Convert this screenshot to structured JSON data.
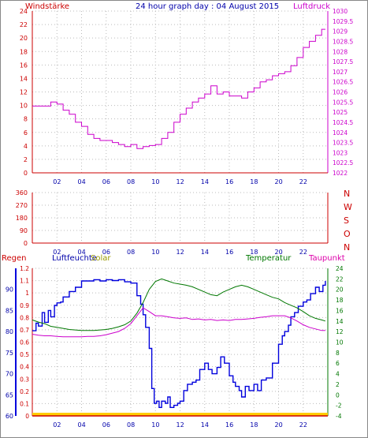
{
  "colors": {
    "red": "#cc0000",
    "magenta": "#cc00cc",
    "navy": "#0000aa",
    "blue": "#0000dd",
    "green": "#007700",
    "gold": "#999900",
    "pink": "#dd00aa",
    "grid": "#bbbbbb",
    "rain_bar": "#ffcc00"
  },
  "panel1": {
    "left_label": "Windstärke",
    "title": "24 hour graph day : 04 August 2015",
    "right_label": "Luftdruck",
    "left_ticks": [
      "0",
      "2",
      "4",
      "6",
      "8",
      "10",
      "12",
      "14",
      "16",
      "18",
      "20",
      "22",
      "24"
    ],
    "right_ticks": [
      "1022",
      "1022.5",
      "1023",
      "1023.5",
      "1024",
      "1024.5",
      "1025",
      "1025.5",
      "1026",
      "1026.5",
      "1027",
      "1027.5",
      "1028",
      "1028.5",
      "1029",
      "1029.5",
      "1030"
    ]
  },
  "panel2": {
    "left_ticks": [
      "0",
      "90",
      "180",
      "270",
      "360"
    ],
    "right_labels": [
      "N",
      "W",
      "S",
      "O",
      "N"
    ]
  },
  "panel3": {
    "label_regen": "Regen",
    "label_luftfeuchte": "Luftfeuchte",
    "label_solar": "Solar",
    "label_temperatur": "Temperatur",
    "label_taupunkt": "Taupunkt",
    "hum_ticks": [
      "60",
      "65",
      "70",
      "75",
      "80",
      "85",
      "90"
    ],
    "rain_ticks": [
      "0",
      "0.1",
      "0.2",
      "0.3",
      "0.4",
      "0.5",
      "0.6",
      "0.7",
      "0.8",
      "0.9",
      "1",
      "1.1",
      "1.2"
    ],
    "temp_ticks": [
      "-4",
      "-2",
      "0",
      "2",
      "4",
      "6",
      "8",
      "10",
      "12",
      "14",
      "16",
      "18",
      "20",
      "22",
      "24"
    ]
  },
  "x_ticks": [
    "02",
    "04",
    "06",
    "08",
    "10",
    "12",
    "14",
    "16",
    "18",
    "20",
    "22"
  ],
  "chart_data": [
    {
      "type": "line",
      "title": "24 hour graph day : 04 August 2015",
      "x_unit": "hour of day",
      "xlim": [
        0,
        24
      ],
      "y_left_label": "Windstärke",
      "ylim_left": [
        0,
        24
      ],
      "y_right_label": "Luftdruck",
      "ylim_right": [
        1022,
        1030
      ],
      "series": [
        {
          "name": "Windstärke",
          "axis": "left",
          "x": [
            0,
            24
          ],
          "y": [
            0,
            0
          ]
        },
        {
          "name": "Luftdruck",
          "axis": "right",
          "x": [
            0.0,
            1.0,
            1.5,
            2.0,
            2.5,
            3.0,
            3.5,
            4.0,
            4.5,
            5.0,
            5.5,
            6.0,
            6.5,
            7.0,
            7.5,
            8.0,
            8.5,
            9.0,
            9.5,
            10.0,
            10.5,
            11.0,
            11.5,
            12.0,
            12.5,
            13.0,
            13.5,
            14.0,
            14.5,
            15.0,
            15.5,
            16.0,
            16.5,
            17.0,
            17.5,
            18.0,
            18.5,
            19.0,
            19.5,
            20.0,
            20.5,
            21.0,
            21.5,
            22.0,
            22.5,
            23.0,
            23.5,
            23.8
          ],
          "y": [
            1025.3,
            1025.3,
            1025.5,
            1025.4,
            1025.1,
            1024.9,
            1024.5,
            1024.3,
            1023.9,
            1023.7,
            1023.6,
            1023.6,
            1023.5,
            1023.4,
            1023.3,
            1023.4,
            1023.2,
            1023.3,
            1023.35,
            1023.4,
            1023.7,
            1024.0,
            1024.5,
            1024.9,
            1025.2,
            1025.5,
            1025.7,
            1025.9,
            1026.3,
            1025.9,
            1026.0,
            1025.8,
            1025.8,
            1025.7,
            1026.0,
            1026.2,
            1026.5,
            1026.6,
            1026.8,
            1026.9,
            1027.0,
            1027.3,
            1027.7,
            1028.2,
            1028.5,
            1028.8,
            1029.1,
            1029.1
          ]
        }
      ]
    },
    {
      "type": "line",
      "x_unit": "hour of day",
      "xlim": [
        0,
        24
      ],
      "y_label": "wind direction (degrees)",
      "ylim": [
        0,
        360
      ],
      "series": [
        {
          "name": "Windrichtung",
          "x": [
            0,
            24
          ],
          "y": [
            0,
            0
          ]
        }
      ]
    },
    {
      "type": "line",
      "x_unit": "hour of day",
      "xlim": [
        0,
        24
      ],
      "ylim_humidity": [
        60,
        95
      ],
      "ylim_rain": [
        0,
        1.2
      ],
      "ylim_temperature": [
        -4,
        24
      ],
      "series": [
        {
          "name": "Regen",
          "axis": "rain",
          "x": [
            0,
            24
          ],
          "y": [
            0,
            0
          ]
        },
        {
          "name": "Solar",
          "axis": "rain",
          "x": [
            0,
            24
          ],
          "y": [
            0,
            0
          ]
        },
        {
          "name": "Luftfeuchte",
          "axis": "humidity",
          "x": [
            0.0,
            0.3,
            0.5,
            0.8,
            1.0,
            1.3,
            1.5,
            1.8,
            2.0,
            2.3,
            2.5,
            3.0,
            3.5,
            4.0,
            4.5,
            5.0,
            5.5,
            6.0,
            6.5,
            7.0,
            7.5,
            8.0,
            8.5,
            8.8,
            9.0,
            9.2,
            9.5,
            9.7,
            9.9,
            10.1,
            10.3,
            10.5,
            10.8,
            11.0,
            11.2,
            11.5,
            11.8,
            12.0,
            12.3,
            12.6,
            13.0,
            13.3,
            13.6,
            14.0,
            14.3,
            14.6,
            15.0,
            15.3,
            15.6,
            16.0,
            16.3,
            16.5,
            16.8,
            17.0,
            17.3,
            17.6,
            18.0,
            18.3,
            18.6,
            19.0,
            19.5,
            20.0,
            20.3,
            20.5,
            20.8,
            21.0,
            21.3,
            21.6,
            22.0,
            22.3,
            22.6,
            23.0,
            23.3,
            23.6,
            23.8
          ],
          "y": [
            80.2,
            82,
            81.3,
            84.5,
            82.2,
            85,
            83.5,
            86.2,
            86.8,
            87,
            88.2,
            89.5,
            90.5,
            92,
            92,
            92.3,
            92,
            92.3,
            92.1,
            92.3,
            91.8,
            91.5,
            88.5,
            86.5,
            84,
            81,
            76,
            66.5,
            63,
            63.5,
            62,
            63.5,
            63,
            64.5,
            62,
            62.5,
            63,
            63.5,
            66,
            67.5,
            68,
            68.5,
            71,
            72.5,
            71,
            70,
            71.5,
            74,
            72.5,
            69.5,
            68,
            67,
            66,
            64.5,
            67,
            66,
            67.5,
            66,
            68.5,
            69,
            72.5,
            77,
            79,
            80,
            81.5,
            83.5,
            84.5,
            86,
            87,
            87.5,
            89,
            90.5,
            89.5,
            91,
            92
          ]
        },
        {
          "name": "Temperatur",
          "axis": "temperature",
          "x": [
            0.0,
            0.5,
            1.0,
            1.5,
            2.0,
            2.5,
            3.0,
            3.5,
            4.0,
            4.5,
            5.0,
            5.5,
            6.0,
            6.5,
            7.0,
            7.5,
            8.0,
            8.5,
            9.0,
            9.5,
            10.0,
            10.5,
            11.0,
            11.5,
            12.0,
            12.5,
            13.0,
            13.5,
            14.0,
            14.5,
            15.0,
            15.5,
            16.0,
            16.5,
            17.0,
            17.5,
            18.0,
            18.5,
            19.0,
            19.5,
            20.0,
            20.5,
            21.0,
            21.5,
            22.0,
            22.5,
            23.0,
            23.5,
            23.8
          ],
          "y": [
            14.2,
            13.8,
            13.5,
            13.0,
            12.8,
            12.6,
            12.4,
            12.3,
            12.2,
            12.2,
            12.2,
            12.3,
            12.4,
            12.6,
            12.9,
            13.3,
            14.0,
            15.5,
            17.5,
            20.0,
            21.5,
            22.0,
            21.6,
            21.2,
            21.0,
            20.8,
            20.5,
            20.0,
            19.5,
            19.0,
            18.8,
            19.5,
            20.0,
            20.5,
            20.8,
            20.5,
            20.0,
            19.5,
            19.0,
            18.5,
            18.2,
            17.5,
            17.0,
            16.5,
            15.8,
            15.0,
            14.5,
            14.2,
            14.0
          ]
        },
        {
          "name": "Taupunkt",
          "axis": "temperature",
          "x": [
            0.0,
            0.5,
            1.0,
            1.5,
            2.0,
            2.5,
            3.0,
            3.5,
            4.0,
            4.5,
            5.0,
            5.5,
            6.0,
            6.5,
            7.0,
            7.5,
            8.0,
            8.5,
            9.0,
            9.5,
            10.0,
            10.5,
            11.0,
            11.5,
            12.0,
            12.5,
            13.0,
            13.5,
            14.0,
            14.5,
            15.0,
            15.5,
            16.0,
            16.5,
            17.0,
            17.5,
            18.0,
            18.5,
            19.0,
            19.5,
            20.0,
            20.5,
            21.0,
            21.5,
            22.0,
            22.5,
            23.0,
            23.5,
            23.8
          ],
          "y": [
            11.5,
            11.3,
            11.2,
            11.2,
            11.1,
            11.0,
            11.0,
            11.0,
            11.0,
            11.1,
            11.1,
            11.2,
            11.4,
            11.7,
            12.0,
            12.6,
            13.5,
            15.0,
            16.5,
            15.8,
            15.0,
            15.0,
            14.8,
            14.6,
            14.5,
            14.6,
            14.3,
            14.4,
            14.2,
            14.3,
            14.1,
            14.2,
            14.1,
            14.3,
            14.3,
            14.4,
            14.5,
            14.7,
            14.8,
            15.0,
            15.0,
            15.0,
            14.6,
            14.0,
            13.3,
            12.8,
            12.5,
            12.2,
            12.2
          ]
        }
      ]
    }
  ]
}
